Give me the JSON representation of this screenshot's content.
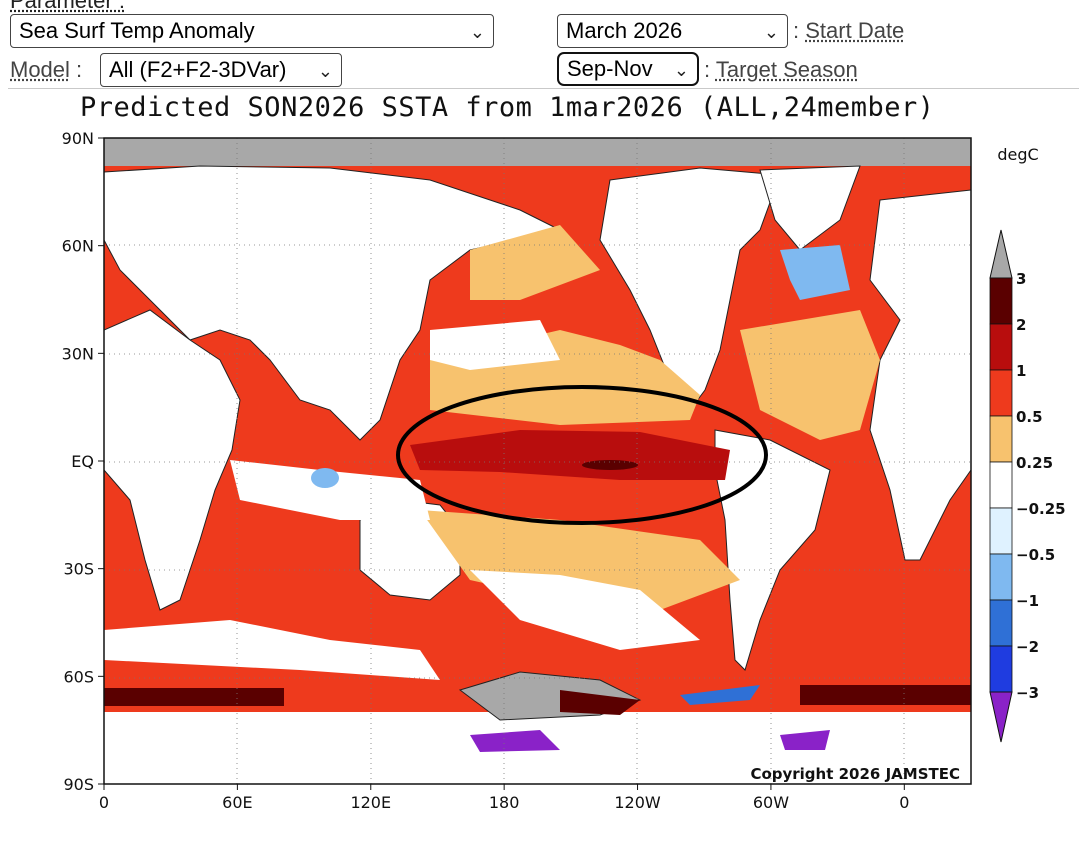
{
  "controls": {
    "parameter_label": "Parameter :",
    "parameter_value": "Sea Surf Temp Anomaly",
    "start_date_value": "March 2026",
    "start_date_label": "Start Date",
    "model_label": "Model",
    "model_value": "All (F2+F2-3DVar)",
    "season_value": "Sep-Nov",
    "season_label": "Target Season",
    "colon": ":"
  },
  "chart_data": {
    "type": "heatmap",
    "title": "Predicted SON2026 SSTA from 1mar2026 (ALL,24member)",
    "units": "degC",
    "copyright": "Copyright 2026 JAMSTEC",
    "y_ticks": [
      "90N",
      "60N",
      "30N",
      "EQ",
      "30S",
      "60S",
      "90S"
    ],
    "x_ticks": [
      "0",
      "60E",
      "120E",
      "180",
      "120W",
      "60W",
      "0"
    ],
    "lat_range": [
      -90,
      90
    ],
    "lon_range": [
      0,
      390
    ],
    "colorbar": {
      "levels": [
        -3,
        -2,
        -1,
        -0.5,
        -0.25,
        0.25,
        0.5,
        1,
        2,
        3
      ],
      "labels": [
        "3",
        "2",
        "1",
        "0.5",
        "0.25",
        "−0.25",
        "−0.5",
        "−1",
        "−2",
        "−3"
      ],
      "colors": [
        "#5a0000",
        "#b80d0d",
        "#ee3a1d",
        "#f7c26e",
        "#ffffff",
        "#dff2ff",
        "#7fb9f0",
        "#2f70d6",
        "#1f3ce0",
        "#8a22c8"
      ]
    },
    "highlight": "ellipse around equatorial Pacific (approx. 150E–80W, 10S–15N)"
  }
}
